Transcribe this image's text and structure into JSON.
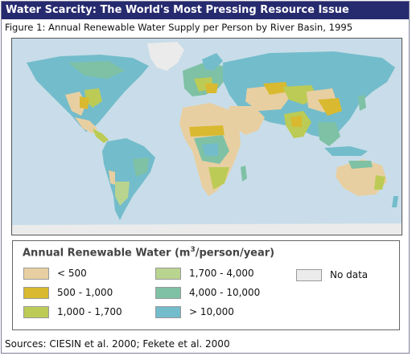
{
  "header": {
    "title": "Water Scarcity: The World's Most Pressing Resource Issue"
  },
  "figure": {
    "caption": "Figure 1: Annual Renewable Water Supply per Person by River Basin, 1995"
  },
  "legend": {
    "title_prefix": "Annual Renewable Water (m",
    "title_sup": "3",
    "title_suffix": "/person/year)",
    "items": [
      {
        "label": "< 500",
        "color": "#e8cfa2"
      },
      {
        "label": "500 - 1,000",
        "color": "#d9b92f"
      },
      {
        "label": "1,000 - 1,700",
        "color": "#bccb55"
      },
      {
        "label": "1,700 - 4,000",
        "color": "#b9d48f"
      },
      {
        "label": "4,000 - 10,000",
        "color": "#7fc1a5"
      },
      {
        "label": "> 10,000",
        "color": "#73bccb"
      },
      {
        "label": "No data",
        "color": "#ebebeb"
      }
    ]
  },
  "footer": {
    "sources": "Sources: CIESIN et al. 2000; Fekete et al. 2000"
  },
  "colors": {
    "ocean": "#c8dde9",
    "title_bar": "#262a6e"
  }
}
